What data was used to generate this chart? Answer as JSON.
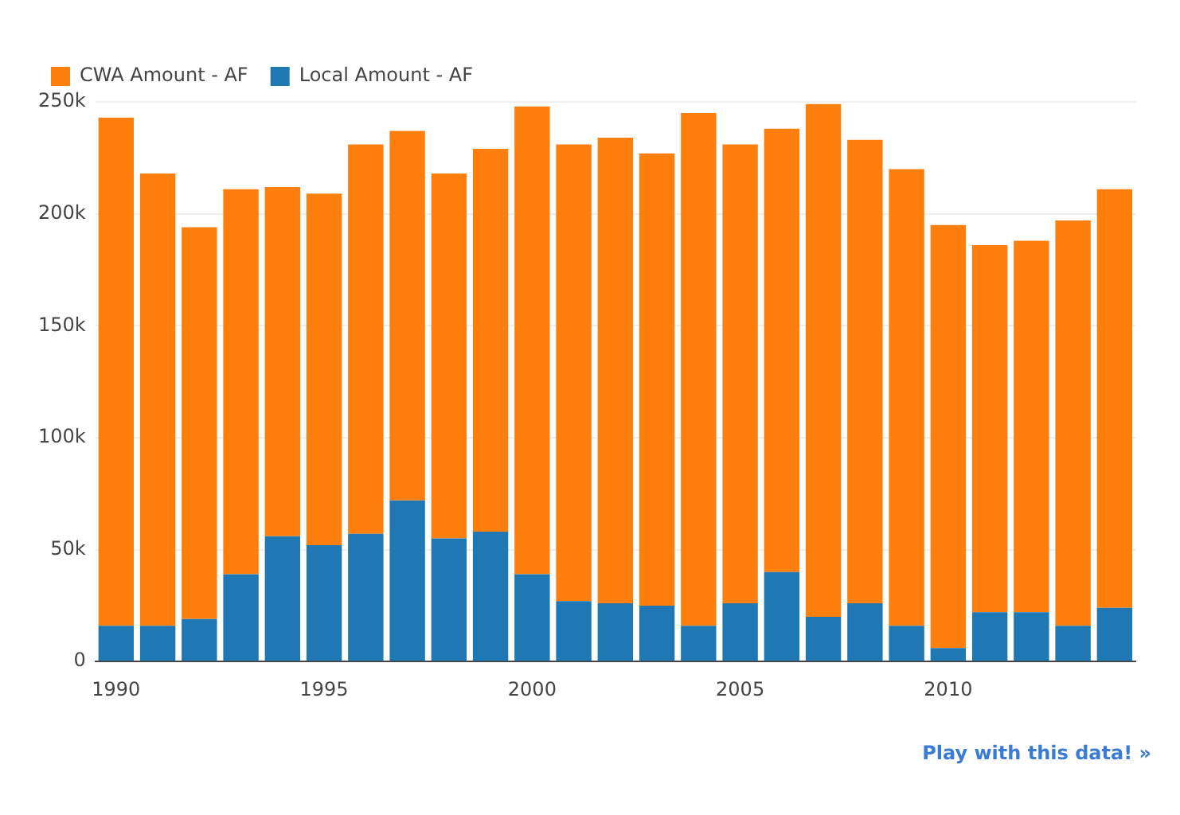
{
  "chart_data": {
    "type": "bar",
    "stacked": true,
    "x": [
      1990,
      1991,
      1992,
      1993,
      1994,
      1995,
      1996,
      1997,
      1998,
      1999,
      2000,
      2001,
      2002,
      2003,
      2004,
      2005,
      2006,
      2007,
      2008,
      2009,
      2010,
      2011,
      2012,
      2013,
      2014
    ],
    "series": [
      {
        "name": "Local Amount - AF",
        "color": "#1f77b4",
        "values": [
          16000,
          16000,
          19000,
          39000,
          56000,
          52000,
          57000,
          72000,
          55000,
          58000,
          39000,
          27000,
          26000,
          25000,
          16000,
          26000,
          40000,
          20000,
          26000,
          16000,
          6000,
          22000,
          22000,
          16000,
          24000
        ]
      },
      {
        "name": "CWA Amount - AF",
        "color": "#ff7f0e",
        "values": [
          227000,
          202000,
          175000,
          172000,
          156000,
          157000,
          174000,
          165000,
          163000,
          171000,
          209000,
          204000,
          208000,
          202000,
          229000,
          205000,
          198000,
          229000,
          207000,
          204000,
          189000,
          164000,
          166000,
          181000,
          187000
        ]
      }
    ],
    "xlim": [
      1989.5,
      2014.5
    ],
    "xticks": [
      1990,
      1995,
      2000,
      2005,
      2010
    ],
    "ylim": [
      0,
      250000
    ],
    "yticks": [
      0,
      {
        "value": 50000,
        "label": "50k"
      },
      {
        "value": 100000,
        "label": "100k"
      },
      {
        "value": 150000,
        "label": "150k"
      },
      {
        "value": 200000,
        "label": "200k"
      },
      {
        "value": 250000,
        "label": "250k"
      }
    ],
    "grid": "y",
    "legend": "top left",
    "annotations": [
      "Play with this data! »"
    ]
  }
}
